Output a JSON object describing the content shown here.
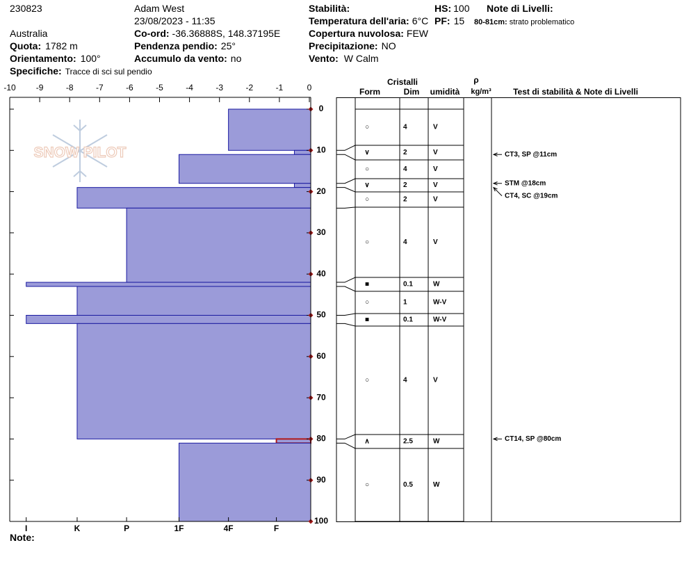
{
  "header": {
    "id": "230823",
    "observer": "Adam West",
    "datetime": "23/08/2023 - 11:35",
    "location": "Australia",
    "quota": {
      "label": "Quota:",
      "value": "1782 m"
    },
    "orientamento": {
      "label": "Orientamento:",
      "value": "100°"
    },
    "specifiche": {
      "label": "Specifiche:",
      "value": "Tracce di sci sul pendio"
    },
    "coord": {
      "label": "Co-ord:",
      "value": "-36.36888S, 148.37195E"
    },
    "pendenza": {
      "label": "Pendenza pendio:",
      "value": "25°"
    },
    "accumulo": {
      "label": "Accumulo da vento:",
      "value": "no"
    },
    "stabilita": {
      "label": "Stabilità:"
    },
    "temperatura": {
      "label": "Temperatura dell'aria:",
      "value": "6°C"
    },
    "copertura": {
      "label": "Copertura nuvolosa:",
      "value": "FEW"
    },
    "precipitazione": {
      "label": "Precipitazione:",
      "value": "NO"
    },
    "vento": {
      "label": "Vento:",
      "value": "W Calm"
    },
    "hs": {
      "label": "HS:",
      "value": "100"
    },
    "pf": {
      "label": "PF:",
      "value": "15"
    },
    "note_livelli": {
      "label": "Note di Livelli:"
    },
    "note_item": {
      "label": "80-81cm:",
      "value": "strato problematico"
    },
    "note": "Note:",
    "logo": "SNOW PILOT"
  },
  "table": {
    "cristalli": "Cristalli",
    "form": "Form",
    "dim": "Dim",
    "umidita": "umidità",
    "rho": "ρ",
    "density_unit": "kg/m³",
    "tests": "Test di stabilità & Note di Livelli"
  },
  "chart_data": {
    "type": "hardness-profile",
    "xlim": [
      -10,
      0
    ],
    "xticks": [
      -10,
      -9,
      -8,
      -7,
      -6,
      -5,
      -4,
      -3,
      -2,
      -1,
      0
    ],
    "ylim": [
      0,
      100
    ],
    "yticks": [
      0,
      10,
      20,
      30,
      40,
      50,
      60,
      70,
      80,
      90,
      100
    ],
    "hardness_ticks": [
      {
        "value": -9.45,
        "label": "I"
      },
      {
        "value": -7.75,
        "label": "K"
      },
      {
        "value": -6.1,
        "label": "P"
      },
      {
        "value": -4.35,
        "label": "1F"
      },
      {
        "value": -2.7,
        "label": "4F"
      },
      {
        "value": -1.1,
        "label": "F"
      }
    ],
    "color": "#9b9bd9",
    "edge_color": "#1a1aa0",
    "tick_color": "#a01818",
    "layers": [
      {
        "top": 0,
        "bottom": 10,
        "hardness": -2.7,
        "form": "○",
        "size": "4",
        "moisture": "V"
      },
      {
        "top": 10,
        "bottom": 11,
        "hardness": -0.5,
        "form": "∨",
        "size": "2",
        "moisture": "V"
      },
      {
        "top": 11,
        "bottom": 18,
        "hardness": -4.35,
        "form": "○",
        "size": "4",
        "moisture": "V"
      },
      {
        "top": 18,
        "bottom": 19,
        "hardness": -0.5,
        "form": "∨",
        "size": "2",
        "moisture": "V"
      },
      {
        "top": 19,
        "bottom": 24,
        "hardness": -7.75,
        "form": "○",
        "size": "2",
        "moisture": "V"
      },
      {
        "top": 24,
        "bottom": 42,
        "hardness": -6.1,
        "form": "○",
        "size": "4",
        "moisture": "V"
      },
      {
        "top": 42,
        "bottom": 43,
        "hardness": -9.45,
        "form": "■",
        "size": "0.1",
        "moisture": "W"
      },
      {
        "top": 43,
        "bottom": 50,
        "hardness": -7.75,
        "form": "○",
        "size": "1",
        "moisture": "W-V"
      },
      {
        "top": 50,
        "bottom": 52,
        "hardness": -9.45,
        "form": "■",
        "size": "0.1",
        "moisture": "W-V"
      },
      {
        "top": 52,
        "bottom": 80,
        "hardness": -7.75,
        "form": "○",
        "size": "4",
        "moisture": "V"
      },
      {
        "top": 80,
        "bottom": 81,
        "hardness": -1.1,
        "form": "∧",
        "size": "2.5",
        "moisture": "W",
        "edge": "#b01818"
      },
      {
        "top": 81,
        "bottom": 100,
        "hardness": -4.35,
        "form": "○",
        "size": "0.5",
        "moisture": "W"
      }
    ],
    "tests": [
      {
        "depth": 11,
        "label": "CT3, SP @11cm"
      },
      {
        "depth": 18,
        "label": "STM @18cm"
      },
      {
        "depth": 19,
        "label": "CT4, SC @19cm"
      },
      {
        "depth": 80,
        "label": "CT14, SP @80cm"
      }
    ]
  }
}
